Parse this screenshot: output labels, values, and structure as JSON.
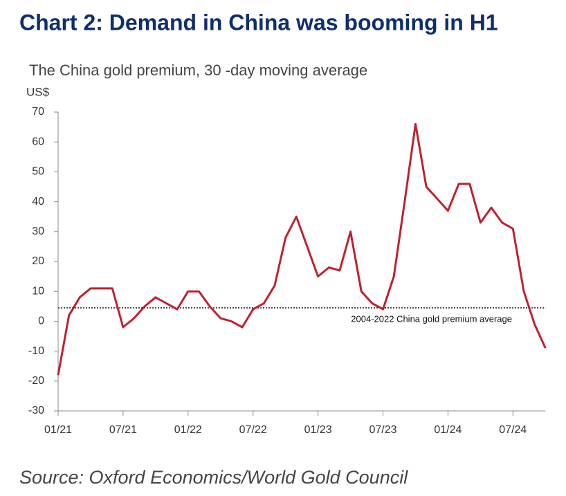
{
  "chart_data": {
    "type": "line",
    "title": "Chart 2: Demand in China was booming in H1",
    "subtitle": "The China gold premium, 30 -day moving average",
    "y_axis_label": "US$",
    "source": "Source: Oxford Economics/World Gold Council",
    "x": [
      "01/21",
      "02/21",
      "03/21",
      "04/21",
      "05/21",
      "06/21",
      "07/21",
      "08/21",
      "09/21",
      "10/21",
      "11/21",
      "12/21",
      "01/22",
      "02/22",
      "03/22",
      "04/22",
      "05/22",
      "06/22",
      "07/22",
      "08/22",
      "09/22",
      "10/22",
      "11/22",
      "12/22",
      "01/23",
      "02/23",
      "03/23",
      "04/23",
      "05/23",
      "06/23",
      "07/23",
      "08/23",
      "09/23",
      "10/23",
      "11/23",
      "12/23",
      "01/24",
      "02/24",
      "03/24",
      "04/24",
      "05/24",
      "06/24",
      "07/24",
      "08/24",
      "09/24",
      "10/24"
    ],
    "values": [
      -18,
      2,
      8,
      11,
      11,
      11,
      -2,
      1,
      5,
      8,
      6,
      4,
      10,
      10,
      5,
      1,
      0,
      -2,
      4,
      6,
      12,
      28,
      35,
      25,
      15,
      18,
      17,
      30,
      10,
      6,
      4,
      15,
      40,
      66,
      45,
      41,
      37,
      46,
      46,
      33,
      38,
      33,
      31,
      10,
      -1,
      -9
    ],
    "color": "#c0202e",
    "xticks": [
      "01/21",
      "07/21",
      "01/22",
      "07/22",
      "01/23",
      "07/23",
      "01/24",
      "07/24"
    ],
    "ylim": [
      -30,
      70
    ],
    "yticks": [
      -30,
      -20,
      -10,
      0,
      10,
      20,
      30,
      40,
      50,
      60,
      70
    ],
    "average": 4.5,
    "average_label": "2004-2022 China gold premium average"
  }
}
